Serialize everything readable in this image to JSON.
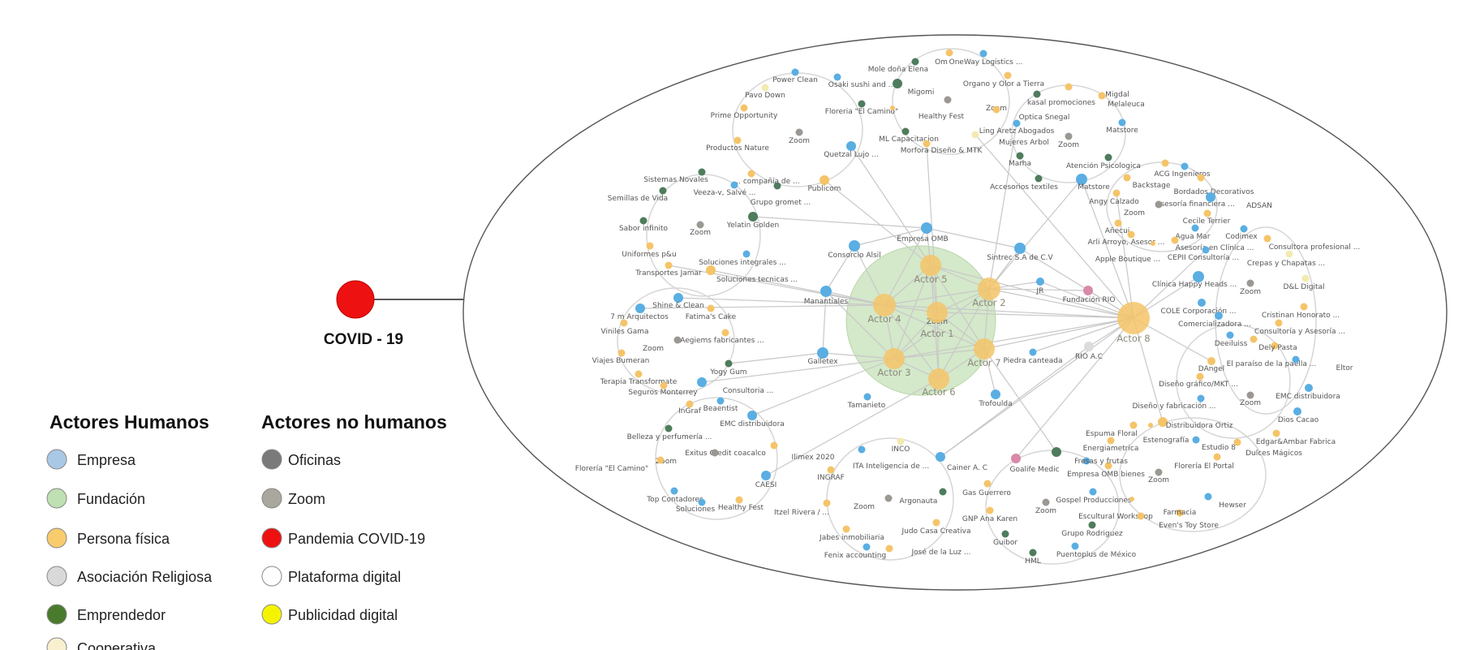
{
  "covid": {
    "label": "COVID - 19",
    "color": "#ee1111"
  },
  "legend": {
    "human_title": "Actores Humanos",
    "nonhuman_title": "Actores no humanos",
    "human": [
      {
        "type": "empresa",
        "label": "Empresa"
      },
      {
        "type": "fundacion",
        "label": "Fundación"
      },
      {
        "type": "persona",
        "label": "Persona física"
      },
      {
        "type": "religiosa",
        "label": "Asociación Religiosa"
      },
      {
        "type": "emprendedor",
        "label": "Emprendedor"
      },
      {
        "type": "cooperativa",
        "label": "Cooperativa"
      }
    ],
    "nonhuman": [
      {
        "type": "oficinas",
        "label": "Oficinas"
      },
      {
        "type": "zoom",
        "label": "Zoom"
      },
      {
        "type": "pandemia",
        "label": "Pandemia COVID-19"
      },
      {
        "type": "plataforma",
        "label": "Plataforma digital"
      },
      {
        "type": "publicidad",
        "label": "Publicidad digital"
      }
    ]
  },
  "types": {
    "empresa": {
      "color": "#5aaee2",
      "legend_color": "#a9c8e6"
    },
    "fundacion": {
      "color": "#d88aa8",
      "legend_color": "#bfe0b2"
    },
    "persona": {
      "color": "#f5c469",
      "legend_color": "#f8cc6c"
    },
    "religiosa": {
      "color": "#dcdcdc",
      "legend_color": "#d9d9d9"
    },
    "emprendedor": {
      "color": "#4e7c5c",
      "legend_color": "#4a7a2c"
    },
    "cooperativa": {
      "color": "#f3eab0",
      "legend_color": "#f8f0cf"
    },
    "oficinas": {
      "color": "#777777",
      "legend_color": "#7a7a7a"
    },
    "zoom": {
      "color": "#9b9893",
      "legend_color": "#aaa79f"
    },
    "pandemia": {
      "color": "#ee1111",
      "legend_color": "#ee1111"
    },
    "plataforma": {
      "color": "#ffffff",
      "legend_color": "#ffffff"
    },
    "publicidad": {
      "color": "#ffff00",
      "legend_color": "#f4f400"
    }
  },
  "actor_group_color": "#c9e2bd",
  "nodes": [
    {
      "id": "powerclean",
      "label": "Power Clean",
      "type": "empresa"
    },
    {
      "id": "osaki",
      "label": "Osaki sushi and ...",
      "type": "empresa"
    },
    {
      "id": "pavo",
      "label": "Pavo Down",
      "type": "cooperativa"
    },
    {
      "id": "prime",
      "label": "Prime Opportunity",
      "type": "persona"
    },
    {
      "id": "florcamino1",
      "label": "Floreria \"El Camino\"",
      "type": "emprendedor"
    },
    {
      "id": "healthy1",
      "label": "Healthy Fest",
      "type": "persona"
    },
    {
      "id": "zoom1",
      "label": "Zoom",
      "type": "zoom"
    },
    {
      "id": "productos",
      "label": "Productos Nature",
      "type": "persona"
    },
    {
      "id": "quetzal",
      "label": "Quetzal Lujo ...",
      "type": "empresa"
    },
    {
      "id": "publicom",
      "label": "Publicom",
      "type": "persona"
    },
    {
      "id": "compania",
      "label": "... compañía de ...",
      "type": "persona"
    },
    {
      "id": "sistemas",
      "label": "Sistemas Novales",
      "type": "emprendedor"
    },
    {
      "id": "veeza",
      "label": "Veeza-v, Salvé ...",
      "type": "empresa"
    },
    {
      "id": "gromet",
      "label": "Grupo gromet ...",
      "type": "emprendedor"
    },
    {
      "id": "semillas",
      "label": "Semillas de Vida",
      "type": "emprendedor"
    },
    {
      "id": "sabor",
      "label": "Sabor infinito",
      "type": "emprendedor"
    },
    {
      "id": "zoom2",
      "label": "Zoom",
      "type": "zoom"
    },
    {
      "id": "yelatin",
      "label": "Yelatin Golden",
      "type": "emprendedor"
    },
    {
      "id": "uniformes",
      "label": "Uniformes p&u",
      "type": "persona"
    },
    {
      "id": "solint",
      "label": "Soluciones integrales ...",
      "type": "empresa"
    },
    {
      "id": "transportes",
      "label": "Transportes Jamar",
      "type": "persona"
    },
    {
      "id": "soltec",
      "label": "Soluciones tecnicas ...",
      "type": "persona"
    },
    {
      "id": "consorcio",
      "label": "Consorcio Alsil",
      "type": "empresa"
    },
    {
      "id": "empresaomb",
      "label": "Empresa OMB",
      "type": "empresa"
    },
    {
      "id": "mole",
      "label": "Mole doña Elena",
      "type": "emprendedor"
    },
    {
      "id": "om",
      "label": "Om",
      "type": "persona"
    },
    {
      "id": "oneway",
      "label": "OneWay Logistics ...",
      "type": "empresa"
    },
    {
      "id": "migomi",
      "label": "Migomi",
      "type": "emprendedor"
    },
    {
      "id": "organo",
      "label": "Organo y Olor a Tierra",
      "type": "persona"
    },
    {
      "id": "zoom3",
      "label": "Zoom",
      "type": "zoom"
    },
    {
      "id": "mlcap",
      "label": "ML Capacitacion",
      "type": "emprendedor"
    },
    {
      "id": "morfora",
      "label": "Morfora Diseño & MTK",
      "type": "persona"
    },
    {
      "id": "mujeres",
      "label": "Mujeres Arbol",
      "type": "cooperativa"
    },
    {
      "id": "ling",
      "label": "Ling Aretz Abogados",
      "type": "empresa"
    },
    {
      "id": "optica",
      "label": "Optica Snegal",
      "type": "persona"
    },
    {
      "id": "kasal",
      "label": "kasal promociones",
      "type": "emprendedor"
    },
    {
      "id": "migdal",
      "label": "Migdal",
      "type": "persona"
    },
    {
      "id": "melaleuca",
      "label": "Melaleuca",
      "type": "persona"
    },
    {
      "id": "matstore1",
      "label": "Matstore",
      "type": "empresa"
    },
    {
      "id": "zoom4",
      "label": "Zoom",
      "type": "zoom"
    },
    {
      "id": "marha",
      "label": "Marha",
      "type": "emprendedor"
    },
    {
      "id": "atencion",
      "label": "Atención Psicologica",
      "type": "emprendedor"
    },
    {
      "id": "accesorios",
      "label": "Accesorios textiles",
      "type": "emprendedor"
    },
    {
      "id": "matstore2",
      "label": "Matstore",
      "type": "empresa"
    },
    {
      "id": "backstage",
      "label": "Backstage",
      "type": "persona"
    },
    {
      "id": "acg",
      "label": "ACG Ingenieros",
      "type": "persona"
    },
    {
      "id": "bordados",
      "label": "Bordados Decorativos",
      "type": "empresa"
    },
    {
      "id": "asesoriafin",
      "label": "Asesoría financiera ...",
      "type": "persona"
    },
    {
      "id": "angy",
      "label": "Angy Calzado",
      "type": "persona"
    },
    {
      "id": "zoom5",
      "label": "Zoom",
      "type": "zoom"
    },
    {
      "id": "adsan",
      "label": "ADSAN",
      "type": "empresa"
    },
    {
      "id": "cecile",
      "label": "Cecile Terrier",
      "type": "persona"
    },
    {
      "id": "anecui",
      "label": "Añecui",
      "type": "persona"
    },
    {
      "id": "arli",
      "label": "Arli Arroyo, Asesor ...",
      "type": "persona"
    },
    {
      "id": "aguamar",
      "label": "Agua Mar",
      "type": "empresa"
    },
    {
      "id": "codimex",
      "label": "Codimex",
      "type": "empresa"
    },
    {
      "id": "apple",
      "label": "Apple Boutique ...",
      "type": "persona"
    },
    {
      "id": "asesoriaclinica",
      "label": "Asesoría en Clínica ...",
      "type": "persona"
    },
    {
      "id": "consultoraprof",
      "label": "Consultora profesional ...",
      "type": "persona"
    },
    {
      "id": "cepii",
      "label": "CEPII Consultoría ...",
      "type": "empresa"
    },
    {
      "id": "crepas",
      "label": "Crepas y Chapatas ...",
      "type": "cooperativa"
    },
    {
      "id": "sintrec",
      "label": "Sintrec S.A de C.V",
      "type": "empresa"
    },
    {
      "id": "jr",
      "label": "JR",
      "type": "empresa"
    },
    {
      "id": "fundrio",
      "label": "Fundación RIO",
      "type": "fundacion",
      "color": "#d88aa8"
    },
    {
      "id": "clinica",
      "label": "Clínica Happy Heads ...",
      "type": "empresa"
    },
    {
      "id": "zoom6",
      "label": "Zoom",
      "type": "zoom"
    },
    {
      "id": "dl",
      "label": "D&L Digital",
      "type": "cooperativa"
    },
    {
      "id": "cristinan",
      "label": "Cristinan Honorato ...",
      "type": "persona"
    },
    {
      "id": "cole",
      "label": "COLE Corporación ...",
      "type": "empresa"
    },
    {
      "id": "comercializadora",
      "label": "Comercializadora ...",
      "type": "empresa"
    },
    {
      "id": "consultoriaasesoria",
      "label": "Consultoría y Asesoría ...",
      "type": "persona"
    },
    {
      "id": "deeiluiss",
      "label": "Deeiluiss",
      "type": "empresa"
    },
    {
      "id": "delypasta",
      "label": "Dely Pasta",
      "type": "persona"
    },
    {
      "id": "paraiso",
      "label": "El paraíso de la paella ...",
      "type": "persona"
    },
    {
      "id": "eltor",
      "label": "Eltor",
      "type": "empresa"
    },
    {
      "id": "dangel",
      "label": "DAngel",
      "type": "persona"
    },
    {
      "id": "disenografico",
      "label": "Diseño gráfico/MKT ...",
      "type": "persona"
    },
    {
      "id": "emcright",
      "label": "EMC distribuidora",
      "type": "empresa"
    },
    {
      "id": "zoom7",
      "label": "Zoom",
      "type": "zoom"
    },
    {
      "id": "disenofab",
      "label": "Diseño y fabricación ...",
      "type": "empresa"
    },
    {
      "id": "dioscacao",
      "label": "Dios Cacao",
      "type": "empresa"
    },
    {
      "id": "distribuidora",
      "label": "Distribuidora Ortiz",
      "type": "persona"
    },
    {
      "id": "espuma",
      "label": "Espuma Floral",
      "type": "persona"
    },
    {
      "id": "estenografia",
      "label": "Estenografía",
      "type": "persona"
    },
    {
      "id": "energiametrica",
      "label": "Energiametrica",
      "type": "persona"
    },
    {
      "id": "estudio8",
      "label": "Estudio 8",
      "type": "empresa"
    },
    {
      "id": "edgar",
      "label": "Edgar&Ambar Fabrica",
      "type": "persona"
    },
    {
      "id": "dulces",
      "label": "Dulces Mágicos",
      "type": "persona"
    },
    {
      "id": "florportal",
      "label": "Florería El Portal",
      "type": "persona"
    },
    {
      "id": "zoom8",
      "label": "Zoom",
      "type": "zoom"
    },
    {
      "id": "ombbienes",
      "label": "Empresa OMB bienes",
      "type": "persona"
    },
    {
      "id": "goalife",
      "label": "Goalife Medic",
      "type": "empresa"
    },
    {
      "id": "fresas",
      "label": "Fresas y frutas",
      "type": "emprendedor"
    },
    {
      "id": "cainer",
      "label": "Cainer A. C",
      "type": "fundacion",
      "color": "#d88aa8"
    },
    {
      "id": "gasguerrero",
      "label": "Gas Guerrero",
      "type": "persona"
    },
    {
      "id": "gnp",
      "label": "GNP Ana Karen",
      "type": "persona"
    },
    {
      "id": "guibor",
      "label": "Guibor",
      "type": "emprendedor"
    },
    {
      "id": "hml",
      "label": "HML",
      "type": "emprendedor"
    },
    {
      "id": "puentoplus",
      "label": "Puentoplus de México",
      "type": "empresa"
    },
    {
      "id": "zoom9",
      "label": "Zoom",
      "type": "zoom"
    },
    {
      "id": "gospel",
      "label": "Gospel Producciones",
      "type": "empresa"
    },
    {
      "id": "escultural",
      "label": "Escultural Workshop",
      "type": "persona"
    },
    {
      "id": "grupo",
      "label": "Grupo Rodriguez",
      "type": "emprendedor"
    },
    {
      "id": "evens",
      "label": "Even's Toy Store",
      "type": "persona"
    },
    {
      "id": "farmacia",
      "label": "Farmacia",
      "type": "persona"
    },
    {
      "id": "hewser",
      "label": "Hewser",
      "type": "empresa"
    },
    {
      "id": "ita",
      "label": "ITA Inteligencia de ...",
      "type": "empresa"
    },
    {
      "id": "inco",
      "label": "INCO",
      "type": "cooperativa"
    },
    {
      "id": "ilimex",
      "label": "Ilimex 2020",
      "type": "empresa"
    },
    {
      "id": "ingraf2",
      "label": "INGRAF",
      "type": "persona"
    },
    {
      "id": "argonauta",
      "label": "Argonauta",
      "type": "emprendedor"
    },
    {
      "id": "zoom10",
      "label": "Zoom",
      "type": "zoom"
    },
    {
      "id": "itzel",
      "label": "Itzel Rivera / ...",
      "type": "persona"
    },
    {
      "id": "jabes",
      "label": "Jabes inmobiliaria",
      "type": "persona"
    },
    {
      "id": "fenix",
      "label": "Fenix accounting",
      "type": "empresa"
    },
    {
      "id": "jose",
      "label": "José de la Luz ...",
      "type": "persona"
    },
    {
      "id": "judo",
      "label": "Judo Casa Creativa",
      "type": "persona"
    },
    {
      "id": "trofoulda",
      "label": "Trofoulda",
      "type": "empresa"
    },
    {
      "id": "piedra",
      "label": "Piedra canteada",
      "type": "empresa"
    },
    {
      "id": "rioac",
      "label": "RIO A.C",
      "type": "religiosa"
    },
    {
      "id": "tamanieto",
      "label": "Tamanieto",
      "type": "empresa"
    },
    {
      "id": "galletex",
      "label": "Galletex",
      "type": "empresa"
    },
    {
      "id": "manantiales",
      "label": "Manantiales",
      "type": "empresa"
    },
    {
      "id": "shine",
      "label": "Shine & Clean",
      "type": "empresa"
    },
    {
      "id": "arquitectos",
      "label": "7 m Arquitectos",
      "type": "empresa"
    },
    {
      "id": "fatima",
      "label": "Fatima's Cake",
      "type": "persona"
    },
    {
      "id": "viniles",
      "label": "Viniles Gama",
      "type": "persona"
    },
    {
      "id": "aegiems",
      "label": "Aegiems fabricantes ...",
      "type": "persona"
    },
    {
      "id": "zoom11",
      "label": "Zoom",
      "type": "zoom"
    },
    {
      "id": "viajes",
      "label": "Viajes Bumeran",
      "type": "persona"
    },
    {
      "id": "yogy",
      "label": "Yogy Gum",
      "type": "emprendedor"
    },
    {
      "id": "terapia",
      "label": "Terapia Transformate",
      "type": "persona"
    },
    {
      "id": "seguros",
      "label": "Seguros Monterrey",
      "type": "persona"
    },
    {
      "id": "consultoria",
      "label": "Consultoria ...",
      "type": "empresa"
    },
    {
      "id": "ingraf1",
      "label": "InGraf",
      "type": "persona"
    },
    {
      "id": "beaentist",
      "label": "Beaentist",
      "type": "empresa"
    },
    {
      "id": "emcleft",
      "label": "EMC distribuidora",
      "type": "empresa"
    },
    {
      "id": "belleza",
      "label": "Belleza y perfumería ...",
      "type": "emprendedor"
    },
    {
      "id": "exitus",
      "label": "Exitus Credit coacalco",
      "type": "persona"
    },
    {
      "id": "zoom12",
      "label": "Zoom",
      "type": "zoom"
    },
    {
      "id": "florcamino2",
      "label": "Florería \"El Camino\"",
      "type": "persona"
    },
    {
      "id": "caesi",
      "label": "CAESI",
      "type": "empresa"
    },
    {
      "id": "topcont",
      "label": "Top Contadores",
      "type": "empresa"
    },
    {
      "id": "soluciones",
      "label": "Soluciones",
      "type": "empresa"
    },
    {
      "id": "healthy2",
      "label": "Healthy Fest",
      "type": "persona"
    },
    {
      "id": "zoomcenter",
      "label": "Zoom",
      "type": "zoom"
    },
    {
      "id": "actor1",
      "label": "Actor 1",
      "type": "persona",
      "actor": true
    },
    {
      "id": "actor2",
      "label": "Actor 2",
      "type": "persona",
      "actor": true
    },
    {
      "id": "actor3",
      "label": "Actor 3",
      "type": "persona",
      "actor": true
    },
    {
      "id": "actor4",
      "label": "Actor 4",
      "type": "persona",
      "actor": true
    },
    {
      "id": "actor5",
      "label": "Actor 5",
      "type": "persona",
      "actor": true
    },
    {
      "id": "actor6",
      "label": "Actor 6",
      "type": "persona",
      "actor": true
    },
    {
      "id": "actor7",
      "label": "Actor 7",
      "type": "persona",
      "actor": true
    },
    {
      "id": "actor8",
      "label": "Actor 8",
      "type": "persona",
      "actor": true
    }
  ],
  "edges": [
    [
      "actor1",
      "actor2"
    ],
    [
      "actor1",
      "actor3"
    ],
    [
      "actor1",
      "actor4"
    ],
    [
      "actor1",
      "actor5"
    ],
    [
      "actor1",
      "actor6"
    ],
    [
      "actor1",
      "actor7"
    ],
    [
      "actor2",
      "actor3"
    ],
    [
      "actor2",
      "actor4"
    ],
    [
      "actor2",
      "actor5"
    ],
    [
      "actor2",
      "actor6"
    ],
    [
      "actor2",
      "actor7"
    ],
    [
      "actor3",
      "actor4"
    ],
    [
      "actor3",
      "actor5"
    ],
    [
      "actor3",
      "actor6"
    ],
    [
      "actor3",
      "actor7"
    ],
    [
      "actor4",
      "actor5"
    ],
    [
      "actor4",
      "actor6"
    ],
    [
      "actor4",
      "actor7"
    ],
    [
      "actor5",
      "actor6"
    ],
    [
      "actor5",
      "actor7"
    ],
    [
      "actor6",
      "actor7"
    ],
    [
      "actor1",
      "actor8"
    ],
    [
      "actor2",
      "actor8"
    ],
    [
      "actor3",
      "actor8"
    ],
    [
      "actor4",
      "actor8"
    ],
    [
      "actor5",
      "actor8"
    ],
    [
      "actor7",
      "actor8"
    ],
    [
      "actor5",
      "empresaomb"
    ],
    [
      "actor5",
      "quetzal"
    ],
    [
      "actor5",
      "publicom"
    ],
    [
      "actor4",
      "empresaomb"
    ],
    [
      "actor4",
      "consorcio"
    ],
    [
      "actor4",
      "manantiales"
    ],
    [
      "actor4",
      "shine"
    ],
    [
      "actor4",
      "arquitectos"
    ],
    [
      "actor4",
      "transportes"
    ],
    [
      "actor4",
      "soltec"
    ],
    [
      "actor3",
      "galletex"
    ],
    [
      "actor3",
      "consultoria"
    ],
    [
      "actor3",
      "emcleft"
    ],
    [
      "actor3",
      "manantiales"
    ],
    [
      "actor6",
      "caesi"
    ],
    [
      "actor7",
      "trofoulda"
    ],
    [
      "actor7",
      "fresas"
    ],
    [
      "actor2",
      "sintrec"
    ],
    [
      "actor2",
      "jr"
    ],
    [
      "actor2",
      "fundrio"
    ],
    [
      "actor2",
      "matstore2"
    ],
    [
      "actor2",
      "ling"
    ],
    [
      "actor1",
      "morfora"
    ],
    [
      "actor8",
      "rioac"
    ],
    [
      "actor8",
      "fundrio"
    ],
    [
      "actor8",
      "sintrec"
    ],
    [
      "actor8",
      "angy"
    ],
    [
      "actor8",
      "clinica"
    ],
    [
      "actor8",
      "cepii"
    ],
    [
      "actor8",
      "dangel"
    ],
    [
      "actor8",
      "distribuidora"
    ],
    [
      "actor8",
      "ita"
    ],
    [
      "actor8",
      "cainer"
    ],
    [
      "actor8",
      "piedra"
    ],
    [
      "actor8",
      "jr"
    ],
    [
      "actor8",
      "mujeres"
    ],
    [
      "actor8",
      "matstore2"
    ],
    [
      "empresaomb",
      "yelatin"
    ],
    [
      "empresaomb",
      "consorcio"
    ],
    [
      "empresaomb",
      "sintrec"
    ],
    [
      "consorcio",
      "manantiales"
    ],
    [
      "manantiales",
      "galletex"
    ],
    [
      "yogy",
      "galletex"
    ],
    [
      "rioac",
      "ita"
    ]
  ]
}
